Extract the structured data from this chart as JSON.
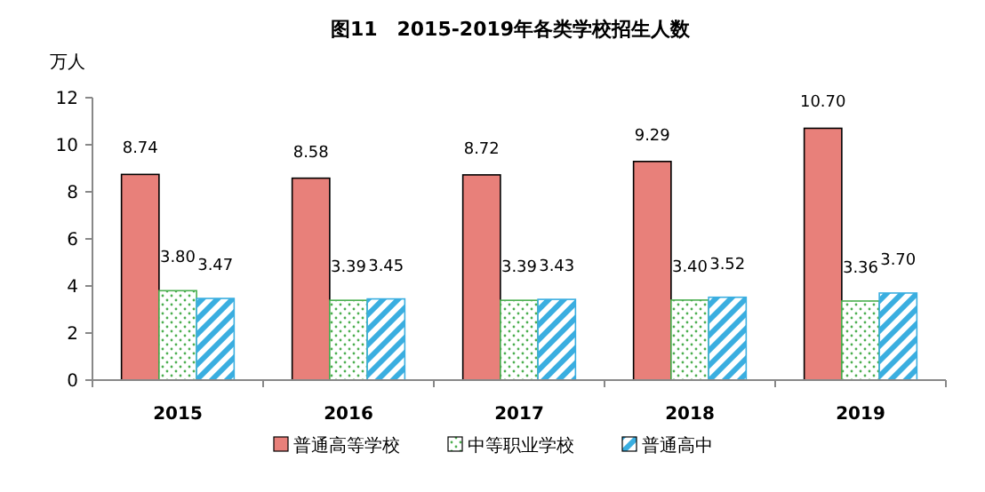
{
  "chart_data": {
    "type": "bar",
    "title": "图11　2015-2019年各类学校招生人数",
    "ylabel": "万人",
    "categories": [
      "2015",
      "2016",
      "2017",
      "2018",
      "2019"
    ],
    "series": [
      {
        "name": "普通高等学校",
        "color": "#e8807a",
        "values": [
          8.74,
          8.58,
          8.72,
          9.29,
          10.7
        ],
        "value_labels": [
          "8.74",
          "8.58",
          "8.72",
          "9.29",
          "10.70"
        ]
      },
      {
        "name": "中等职业学校",
        "color": "#4caf50",
        "values": [
          3.8,
          3.39,
          3.39,
          3.4,
          3.36
        ],
        "value_labels": [
          "3.80",
          "3.39",
          "3.39",
          "3.40",
          "3.36"
        ]
      },
      {
        "name": "普通高中",
        "color": "#3aaee0",
        "values": [
          3.47,
          3.45,
          3.43,
          3.52,
          3.7
        ],
        "value_labels": [
          "3.47",
          "3.45",
          "3.43",
          "3.52",
          "3.70"
        ]
      }
    ],
    "ylim": [
      0,
      12
    ],
    "yticks": [
      0,
      2,
      4,
      6,
      8,
      10,
      12
    ],
    "grid": false,
    "legend": "bottom"
  }
}
